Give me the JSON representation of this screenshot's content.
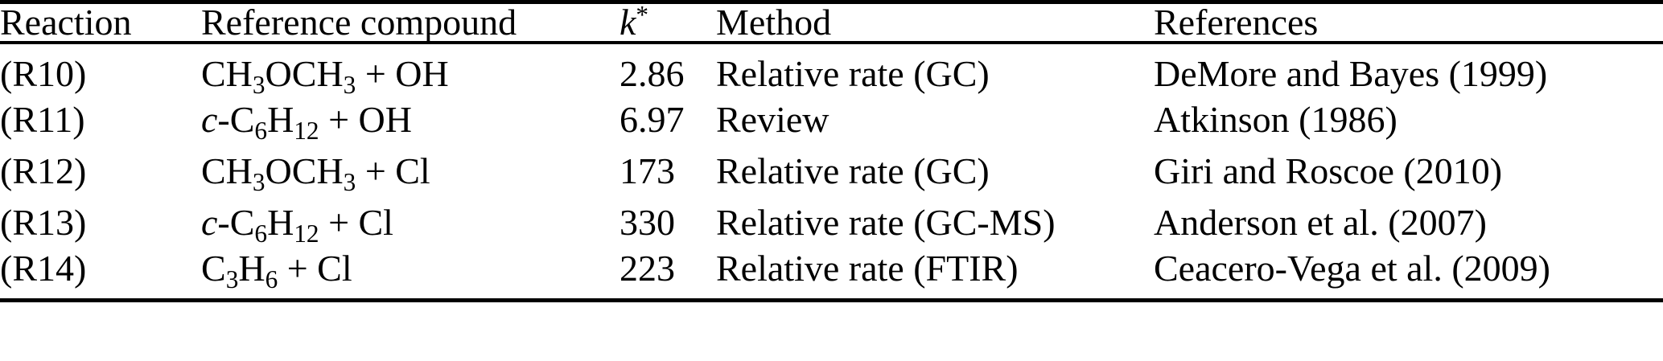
{
  "table": {
    "headers": [
      {
        "id": "reaction",
        "label": "Reaction"
      },
      {
        "id": "compound",
        "label": "Reference compound"
      },
      {
        "id": "k",
        "label": "{k}^*^"
      },
      {
        "id": "method",
        "label": "Method"
      },
      {
        "id": "references",
        "label": "References"
      }
    ],
    "rows": [
      {
        "reaction": "(R10)",
        "compound": "CH~3~OCH~3~ + OH",
        "k": "2.86",
        "method": "Relative rate (GC)",
        "references": "DeMore and Bayes (1999)"
      },
      {
        "reaction": "(R11)",
        "compound": "{c}-C~6~H~12~ + OH",
        "k": "6.97",
        "method": "Review",
        "references": "Atkinson (1986)"
      },
      {
        "reaction": "(R12)",
        "compound": "CH~3~OCH~3~ + Cl",
        "k": "173",
        "method": "Relative rate (GC)",
        "references": "Giri and Roscoe (2010)"
      },
      {
        "reaction": "(R13)",
        "compound": "{c}-C~6~H~12~ + Cl",
        "k": "330",
        "method": "Relative rate (GC-MS)",
        "references": "Anderson et al. (2007)"
      },
      {
        "reaction": "(R14)",
        "compound": "C~3~H~6~ + Cl",
        "k": "223",
        "method": "Relative rate (FTIR)",
        "references": "Ceacero-Vega et al. (2009)"
      }
    ],
    "colors": {
      "text": "#000000",
      "background": "#ffffff",
      "rule": "#000000"
    }
  }
}
